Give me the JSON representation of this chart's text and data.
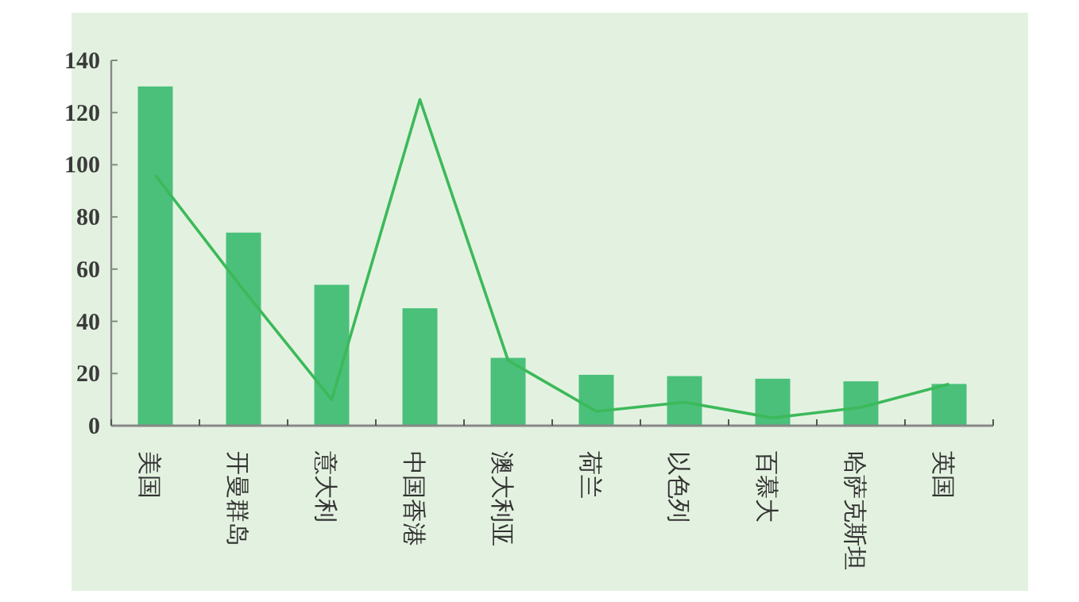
{
  "chart_data": {
    "type": "bar",
    "categories": [
      "美国",
      "开曼群岛",
      "意大利",
      "中国香港",
      "澳大利亚",
      "荷兰",
      "以色列",
      "百慕大",
      "哈萨克斯坦",
      "英国"
    ],
    "series": [
      {
        "color": "#4bc07a",
        "values": [
          130,
          74,
          54,
          45,
          26,
          19.5,
          19,
          18,
          17,
          16
        ]
      },
      {
        "type": "line",
        "color": "#3cb95a",
        "values": [
          96,
          52,
          10,
          125,
          25,
          5.5,
          9,
          3,
          7,
          16
        ]
      }
    ],
    "ylim": [
      0,
      140
    ],
    "yticks": [
      0,
      20,
      40,
      60,
      80,
      100,
      120,
      140
    ],
    "grid": false
  }
}
